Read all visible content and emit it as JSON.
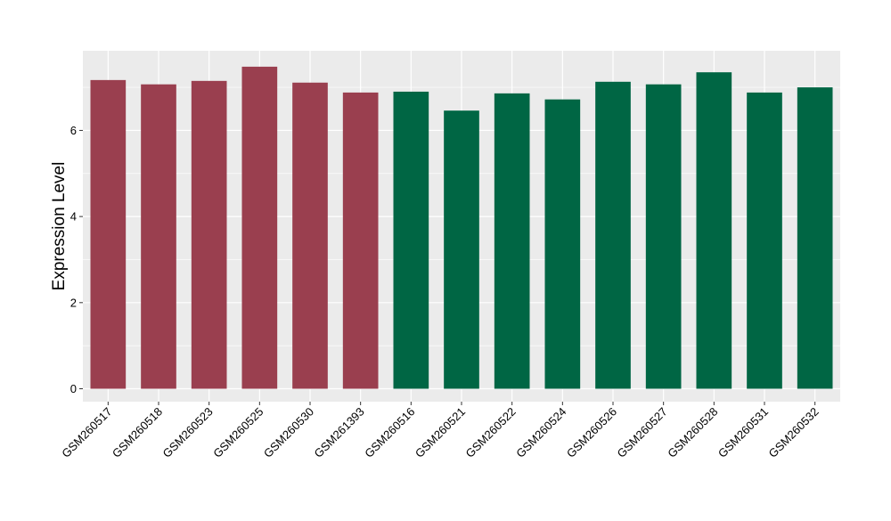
{
  "chart_data": {
    "type": "bar",
    "title": "",
    "xlabel": "",
    "ylabel": "Expression Level",
    "ylim": [
      -0.3,
      7.85
    ],
    "yticks": [
      0,
      2,
      4,
      6
    ],
    "grid": true,
    "panel_background": "#ebebeb",
    "grid_color": "#ffffff",
    "categories": [
      "GSM260517",
      "GSM260518",
      "GSM260523",
      "GSM260525",
      "GSM260530",
      "GSM261393",
      "GSM260516",
      "GSM260521",
      "GSM260522",
      "GSM260524",
      "GSM260526",
      "GSM260527",
      "GSM260528",
      "GSM260531",
      "GSM260532"
    ],
    "values": [
      7.17,
      7.07,
      7.15,
      7.48,
      7.11,
      6.88,
      6.9,
      6.46,
      6.86,
      6.72,
      7.13,
      7.07,
      7.35,
      6.88,
      7.0
    ],
    "bar_colors": [
      "#9a3f4f",
      "#9a3f4f",
      "#9a3f4f",
      "#9a3f4f",
      "#9a3f4f",
      "#9a3f4f",
      "#006644",
      "#006644",
      "#006644",
      "#006644",
      "#006644",
      "#006644",
      "#006644",
      "#006644",
      "#006644"
    ]
  }
}
